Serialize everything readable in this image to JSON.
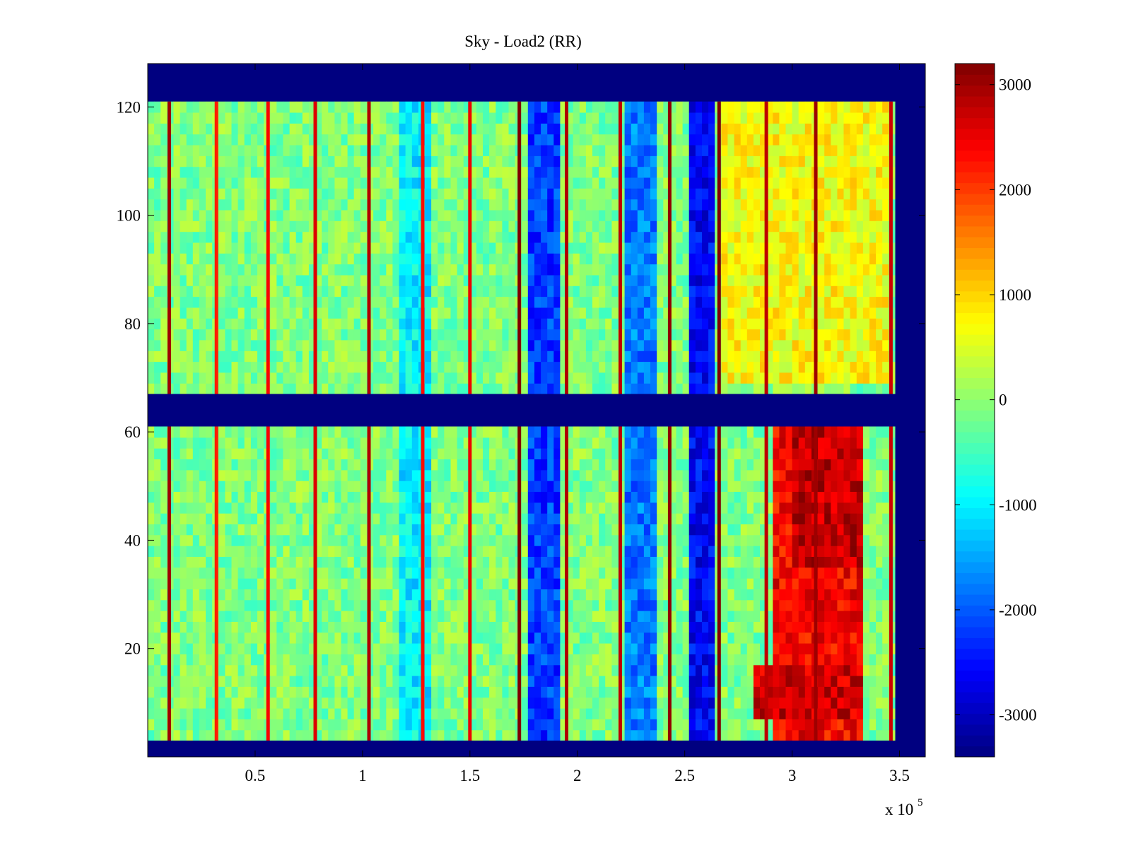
{
  "chart_data": {
    "type": "heatmap",
    "title": "Sky - Load2 (RR)",
    "xlabel": "",
    "ylabel": "",
    "xlim": [
      0,
      362000
    ],
    "ylim": [
      0,
      128
    ],
    "x_ticks": [
      {
        "value": 50000,
        "label": "0.5"
      },
      {
        "value": 100000,
        "label": "1"
      },
      {
        "value": 150000,
        "label": "1.5"
      },
      {
        "value": 200000,
        "label": "2"
      },
      {
        "value": 250000,
        "label": "2.5"
      },
      {
        "value": 300000,
        "label": "3"
      },
      {
        "value": 350000,
        "label": "3.5"
      }
    ],
    "x_exponent": {
      "base": "x 10",
      "power": "5"
    },
    "y_ticks": [
      {
        "value": 20,
        "label": "20"
      },
      {
        "value": 40,
        "label": "40"
      },
      {
        "value": 60,
        "label": "60"
      },
      {
        "value": 80,
        "label": "80"
      },
      {
        "value": 100,
        "label": "100"
      },
      {
        "value": 120,
        "label": "120"
      }
    ],
    "colormap": "jet",
    "colorbar": {
      "clim": [
        -3400,
        3200
      ],
      "ticks": [
        {
          "value": 3000,
          "label": "3000"
        },
        {
          "value": 2000,
          "label": "2000"
        },
        {
          "value": 1000,
          "label": "1000"
        },
        {
          "value": 0,
          "label": "0"
        },
        {
          "value": -1000,
          "label": "-1000"
        },
        {
          "value": -2000,
          "label": "-2000"
        },
        {
          "value": -3000,
          "label": "-3000"
        }
      ]
    },
    "masked_rows": [
      [
        0,
        3
      ],
      [
        61,
        67
      ],
      [
        121,
        128
      ]
    ],
    "masked_cols_from": 348000,
    "row_range_valid": [
      3,
      121
    ],
    "baseline_value": -100,
    "stripes": [
      {
        "x": 10000,
        "value": 3000
      },
      {
        "x": 32000,
        "value": 2200
      },
      {
        "x": 56000,
        "value": 2400
      },
      {
        "x": 78000,
        "value": 2600
      },
      {
        "x": 103000,
        "value": 2900
      },
      {
        "x": 128000,
        "value": 2300
      },
      {
        "x": 150000,
        "value": 2500
      },
      {
        "x": 173000,
        "value": 3200
      },
      {
        "x": 195000,
        "value": 2900
      },
      {
        "x": 220000,
        "value": 2800
      },
      {
        "x": 243000,
        "value": 3100
      },
      {
        "x": 266000,
        "value": 3200
      },
      {
        "x": 288000,
        "value": 2800
      },
      {
        "x": 311000,
        "value": 3000
      },
      {
        "x": 346000,
        "value": 2700
      }
    ],
    "regions": [
      {
        "x": [
          115000,
          130000
        ],
        "y": [
          3,
          121
        ],
        "value": -1000
      },
      {
        "x": [
          175000,
          190000
        ],
        "y": [
          3,
          121
        ],
        "value": -2200
      },
      {
        "x": [
          220000,
          235000
        ],
        "y": [
          3,
          121
        ],
        "value": -1800
      },
      {
        "x": [
          250000,
          262000
        ],
        "y": [
          3,
          121
        ],
        "value": -2600
      },
      {
        "x": [
          265000,
          345000
        ],
        "y": [
          68,
          121
        ],
        "value": 700
      },
      {
        "x": [
          290000,
          333000
        ],
        "y": [
          3,
          61
        ],
        "value": 2400
      },
      {
        "x": [
          300000,
          333000
        ],
        "y": [
          35,
          61
        ],
        "value": 2800
      },
      {
        "x": [
          280000,
          333000
        ],
        "y": [
          6,
          17
        ],
        "value": 2700
      }
    ]
  }
}
